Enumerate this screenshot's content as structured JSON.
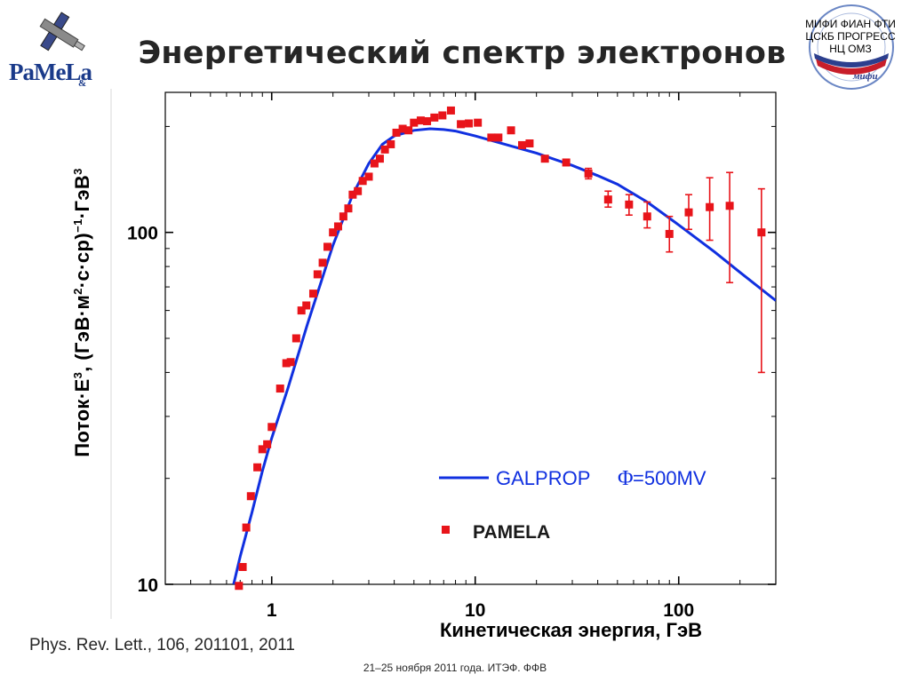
{
  "slide": {
    "title": "Энергетический спектр электронов",
    "reference": "Phys. Rev. Lett., 106, 201101, 2011",
    "footer": "21–25 ноября 2011 года. ИТЭФ. ФФВ"
  },
  "logos": {
    "left": {
      "text": "PaMeLa",
      "amp": "&"
    },
    "right": {
      "line1": "МИФИ  ФИАН  ФТИ",
      "line2": "ЦСКБ  ПРОГРЕСС",
      "line3": "НЦ  ОМЗ",
      "seal": "мифи"
    }
  },
  "colors": {
    "model": "#1030e0",
    "data": "#e8141a",
    "axis": "#000000"
  },
  "chart_data": {
    "type": "scatter",
    "title": "Энергетический спектр электронов",
    "xlabel": "Кинетическая энергия, ГэВ",
    "ylabel_parts": {
      "a": "Поток·E",
      "b": "3",
      "c": ", (ГэВ·м",
      "d": "2",
      "e": "·с·ср)",
      "f": "−1",
      "g": "·ГэВ",
      "h": "3"
    },
    "xscale": "log",
    "yscale": "log",
    "xlim": [
      0.3,
      300
    ],
    "ylim": [
      10,
      250
    ],
    "x_ticks": [
      {
        "value": 1,
        "label": "1"
      },
      {
        "value": 10,
        "label": "10"
      },
      {
        "value": 100,
        "label": "100"
      }
    ],
    "y_ticks": [
      {
        "value": 10,
        "label": "10"
      },
      {
        "value": 100,
        "label": "100"
      }
    ],
    "legend": {
      "placement": "bottom-right",
      "model_label": "GALPROP",
      "phi_label": "Φ",
      "phi_value": "=500MV",
      "data_label": "PAMELA"
    },
    "series": [
      {
        "name": "GALPROP",
        "style": "line",
        "x": [
          0.65,
          0.7,
          0.8,
          0.9,
          1.0,
          1.2,
          1.5,
          2.0,
          2.5,
          3.0,
          3.5,
          4.0,
          5.0,
          6.0,
          7.0,
          8.0,
          10,
          15,
          20,
          30,
          40,
          50,
          70,
          100,
          150,
          200,
          300
        ],
        "y": [
          10,
          12,
          16,
          21,
          26,
          36,
          55,
          92,
          128,
          157,
          178,
          188,
          195,
          197,
          196,
          194,
          188,
          176,
          168,
          155,
          145,
          137,
          122,
          105,
          88,
          77,
          64
        ]
      },
      {
        "name": "PAMELA",
        "style": "markers",
        "points": [
          {
            "x": 0.69,
            "y": 9.9
          },
          {
            "x": 0.72,
            "y": 11.2
          },
          {
            "x": 0.75,
            "y": 14.5
          },
          {
            "x": 0.79,
            "y": 17.8
          },
          {
            "x": 0.85,
            "y": 21.5
          },
          {
            "x": 0.9,
            "y": 24.2
          },
          {
            "x": 0.95,
            "y": 25.0
          },
          {
            "x": 1.0,
            "y": 28.0
          },
          {
            "x": 1.1,
            "y": 36.0
          },
          {
            "x": 1.18,
            "y": 42.5
          },
          {
            "x": 1.24,
            "y": 42.8
          },
          {
            "x": 1.32,
            "y": 50.0
          },
          {
            "x": 1.4,
            "y": 60.0
          },
          {
            "x": 1.48,
            "y": 62.0
          },
          {
            "x": 1.6,
            "y": 67.0
          },
          {
            "x": 1.68,
            "y": 76.0
          },
          {
            "x": 1.78,
            "y": 82.0
          },
          {
            "x": 1.88,
            "y": 91.0
          },
          {
            "x": 2.0,
            "y": 100.0
          },
          {
            "x": 2.12,
            "y": 104.0
          },
          {
            "x": 2.25,
            "y": 111.0
          },
          {
            "x": 2.38,
            "y": 117.0
          },
          {
            "x": 2.5,
            "y": 128.0
          },
          {
            "x": 2.65,
            "y": 131.0
          },
          {
            "x": 2.8,
            "y": 140.0
          },
          {
            "x": 3.0,
            "y": 144.0
          },
          {
            "x": 3.2,
            "y": 157.0
          },
          {
            "x": 3.4,
            "y": 162.0
          },
          {
            "x": 3.6,
            "y": 172.0
          },
          {
            "x": 3.85,
            "y": 178.0
          },
          {
            "x": 4.1,
            "y": 192.0
          },
          {
            "x": 4.4,
            "y": 197.0
          },
          {
            "x": 4.7,
            "y": 195.0
          },
          {
            "x": 5.0,
            "y": 205.0
          },
          {
            "x": 5.4,
            "y": 208.0
          },
          {
            "x": 5.8,
            "y": 207.0
          },
          {
            "x": 6.3,
            "y": 212.0
          },
          {
            "x": 6.9,
            "y": 215.0
          },
          {
            "x": 7.6,
            "y": 222.0
          },
          {
            "x": 8.5,
            "y": 203.0
          },
          {
            "x": 9.3,
            "y": 204.0
          },
          {
            "x": 10.3,
            "y": 205.0
          },
          {
            "x": 12.0,
            "y": 186.0
          },
          {
            "x": 13.0,
            "y": 186.0
          },
          {
            "x": 15.0,
            "y": 195.0
          },
          {
            "x": 17.0,
            "y": 177.0
          },
          {
            "x": 18.5,
            "y": 179.0
          },
          {
            "x": 22.0,
            "y": 162.0
          },
          {
            "x": 28.0,
            "y": 158.0
          },
          {
            "x": 36.0,
            "y": 147.0,
            "lo": 142.0,
            "hi": 152.0
          },
          {
            "x": 45.0,
            "y": 124.0,
            "lo": 118.0,
            "hi": 131.0
          },
          {
            "x": 57.0,
            "y": 120.0,
            "lo": 112.0,
            "hi": 128.0
          },
          {
            "x": 70.0,
            "y": 111.0,
            "lo": 103.0,
            "hi": 122.0
          },
          {
            "x": 90.0,
            "y": 99.0,
            "lo": 88.0,
            "hi": 111.0
          },
          {
            "x": 112.0,
            "y": 114.0,
            "lo": 102.0,
            "hi": 128.0
          },
          {
            "x": 142.0,
            "y": 118.0,
            "lo": 95.0,
            "hi": 143.0
          },
          {
            "x": 178.0,
            "y": 119.0,
            "lo": 72.0,
            "hi": 148.0
          },
          {
            "x": 255.0,
            "y": 100.0,
            "lo": 40.0,
            "hi": 133.0
          }
        ]
      }
    ]
  }
}
